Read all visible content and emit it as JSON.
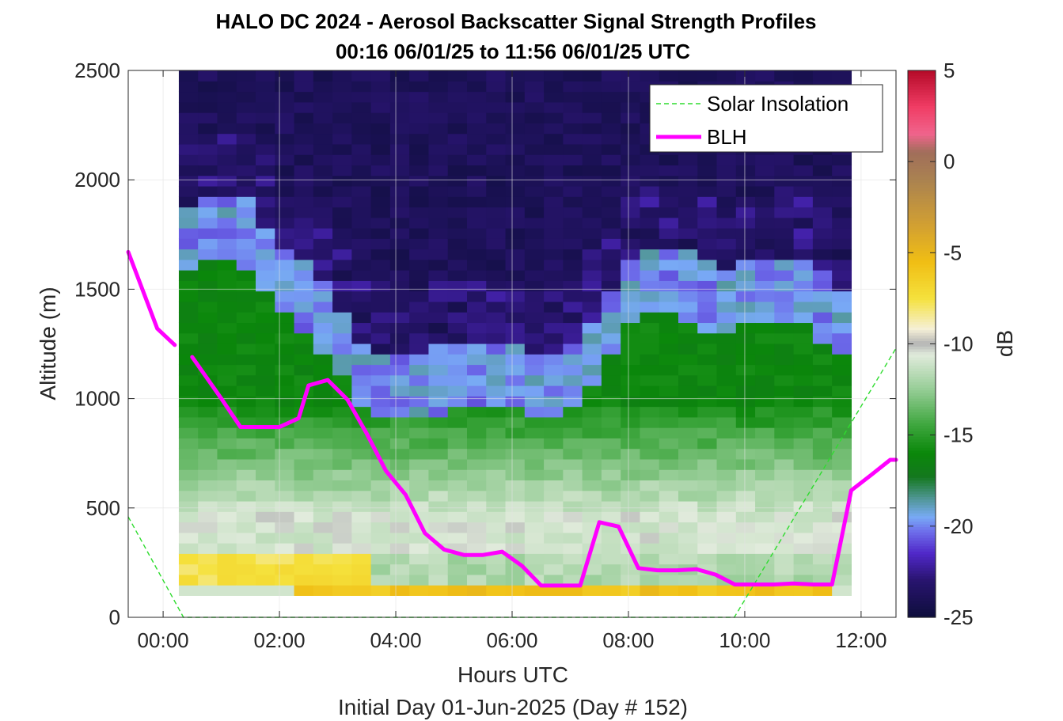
{
  "chart_data": {
    "type": "heatmap",
    "title": "HALO DC 2024 - Aerosol Backscatter Signal Strength Profiles",
    "subtitle": "00:16 06/01/25 to 11:56 06/01/25  UTC",
    "xlabel": "Hours UTC",
    "xlabel2": "Initial Day 01-Jun-2025 (Day # 152)",
    "ylabel": "Altitude (m)",
    "colorbar_label": "dB",
    "xlim": [
      -0.6,
      12.6
    ],
    "ylim": [
      0,
      2500
    ],
    "clim": [
      -25,
      5
    ],
    "x_ticks": [
      0,
      2,
      4,
      6,
      8,
      10,
      12
    ],
    "x_tick_labels": [
      "00:00",
      "02:00",
      "04:00",
      "06:00",
      "08:00",
      "10:00",
      "12:00"
    ],
    "y_ticks": [
      0,
      500,
      1000,
      1500,
      2000,
      2500
    ],
    "y_tick_labels": [
      "0",
      "500",
      "1000",
      "1500",
      "2000",
      "2500"
    ],
    "colorbar_ticks": [
      5,
      0,
      -5,
      -10,
      -15,
      -20,
      -25
    ],
    "colorbar_tick_labels": [
      "5",
      "0",
      "-5",
      "-10",
      "-15",
      "-20",
      "-25"
    ],
    "grid": true,
    "legend_position": "top-right",
    "heatmap": {
      "x_start": 0.27,
      "x_end": 11.83,
      "n_cols": 35,
      "y_start": 100,
      "y_end": 2500,
      "n_rows": 50,
      "description": "Backscatter field: dark purple aloft (~-24 dB), blue/green transition near 1000-1700 m, green boundary layer, yellow near-surface (~-6 dB)."
    },
    "series": [
      {
        "name": "Solar Insolation",
        "color": "#2fdc2f",
        "style": "dashed",
        "x": [
          -0.6,
          0.35,
          9.82,
          12.6
        ],
        "y": [
          460,
          0,
          0,
          1230
        ]
      },
      {
        "name": "BLH",
        "color": "#ff00ff",
        "style": "solid",
        "segments": [
          {
            "x": [
              -0.6,
              -0.1,
              0.2
            ],
            "y": [
              1670,
              1320,
              1245
            ]
          },
          {
            "x": [
              0.5,
              1.0,
              1.33,
              1.67,
              2.0,
              2.33,
              2.5,
              2.83,
              3.17,
              3.5,
              3.83,
              4.17,
              4.5,
              4.83,
              5.17,
              5.5,
              5.83,
              6.17,
              6.5,
              6.83,
              7.17,
              7.5,
              7.83,
              8.17,
              8.5,
              8.83,
              9.17,
              9.5,
              9.83,
              10.17,
              10.5,
              10.83,
              11.17,
              11.5,
              11.83,
              12.17,
              12.5,
              12.6
            ],
            "y": [
              1190,
              1000,
              870,
              870,
              870,
              910,
              1060,
              1085,
              995,
              840,
              670,
              560,
              385,
              310,
              285,
              285,
              300,
              235,
              145,
              145,
              145,
              435,
              415,
              225,
              215,
              215,
              220,
              195,
              150,
              150,
              150,
              155,
              150,
              150,
              580,
              650,
              720,
              720
            ]
          }
        ]
      }
    ]
  }
}
